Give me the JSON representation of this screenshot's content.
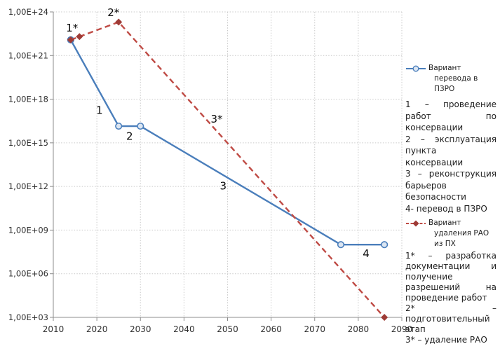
{
  "chart_data": {
    "type": "line",
    "title": "",
    "xlabel": "",
    "ylabel": "",
    "grid": true,
    "legend_position": "right",
    "x_axis": {
      "min": 2010,
      "max": 2090,
      "ticks": [
        2010,
        2020,
        2030,
        2040,
        2050,
        2060,
        2070,
        2080,
        2090
      ]
    },
    "y_axis": {
      "scale": "log10",
      "min_exp": 3,
      "max_exp": 24,
      "step": 3,
      "labels_top_to_bottom": [
        "1,00E+24",
        "1,00E+21",
        "1,00E+18",
        "1,00E+15",
        "1,00E+12",
        "1,00E+09",
        "1,00E+06",
        "1,00E+03"
      ]
    },
    "series": [
      {
        "name": "Вариант перевода в ПЗРО",
        "color": "#4a7ebb",
        "line_style": "solid",
        "marker": "circle",
        "marker_fill": "#dce6f2",
        "points": [
          [
            2014,
            1.2e+22
          ],
          [
            2025,
            1.4e+16
          ],
          [
            2030,
            1.4e+16
          ],
          [
            2076,
            100000000.0
          ],
          [
            2086,
            100000000.0
          ]
        ]
      },
      {
        "name": "Вариант удаления РАО из ПХ",
        "color": "#bf4b45",
        "line_style": "dashed",
        "marker": "diamond",
        "marker_fill": "#9e3b36",
        "points": [
          [
            2014,
            1.2e+22
          ],
          [
            2016,
            2e+22
          ],
          [
            2025,
            2e+23
          ],
          [
            2086,
            1000.0
          ]
        ]
      }
    ],
    "annotations": [
      {
        "text": "1*",
        "x": 2014.3,
        "exp": 22.65
      },
      {
        "text": "2*",
        "x": 2023.8,
        "exp": 23.7
      },
      {
        "text": "1",
        "x": 2020.6,
        "exp": 17.0
      },
      {
        "text": "2",
        "x": 2027.5,
        "exp": 15.2
      },
      {
        "text": "3*",
        "x": 2047.5,
        "exp": 16.4
      },
      {
        "text": "3",
        "x": 2049.0,
        "exp": 11.8
      },
      {
        "text": "4",
        "x": 2081.8,
        "exp": 7.15
      }
    ]
  },
  "legend": {
    "notes1": [
      "1 – проведение работ по консервации",
      "2 – эксплуатация пункта консервации",
      "3 – реконструкция барьеров безопасности",
      "4- перевод в ПЗРО"
    ],
    "notes2": [
      "1* – разработка документации и получение разрешений на проведение работ",
      "2* – подготовительный этап",
      "3* – удаление РАО"
    ]
  }
}
